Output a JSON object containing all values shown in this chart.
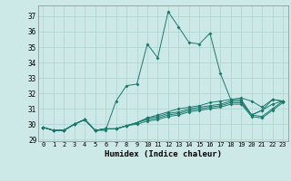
{
  "background_color": "#cce9e7",
  "grid_color": "#aad4d1",
  "line_color": "#1a7a6e",
  "xlabel": "Humidex (Indice chaleur)",
  "ylim": [
    28.9,
    37.7
  ],
  "xlim": [
    -0.5,
    23.5
  ],
  "yticks": [
    29,
    30,
    31,
    32,
    33,
    34,
    35,
    36,
    37
  ],
  "xticks": [
    0,
    1,
    2,
    3,
    4,
    5,
    6,
    7,
    8,
    9,
    10,
    11,
    12,
    13,
    14,
    15,
    16,
    17,
    18,
    19,
    20,
    21,
    22,
    23
  ],
  "series": [
    [
      29.8,
      29.6,
      29.6,
      30.0,
      30.3,
      29.6,
      29.6,
      31.5,
      32.5,
      32.6,
      35.2,
      34.3,
      37.3,
      36.3,
      35.3,
      35.2,
      35.9,
      33.3,
      31.6,
      31.6,
      30.6,
      30.9,
      31.6,
      31.5
    ],
    [
      29.8,
      29.6,
      29.6,
      30.0,
      30.3,
      29.6,
      29.7,
      29.7,
      29.9,
      30.1,
      30.4,
      30.6,
      30.8,
      31.0,
      31.1,
      31.2,
      31.4,
      31.5,
      31.6,
      31.7,
      31.5,
      31.1,
      31.6,
      31.5
    ],
    [
      29.8,
      29.6,
      29.6,
      30.0,
      30.3,
      29.6,
      29.7,
      29.7,
      29.9,
      30.1,
      30.4,
      30.5,
      30.7,
      30.8,
      31.0,
      31.1,
      31.2,
      31.3,
      31.5,
      31.5,
      30.6,
      30.9,
      31.3,
      31.5
    ],
    [
      29.8,
      29.6,
      29.6,
      30.0,
      30.3,
      29.6,
      29.7,
      29.7,
      29.9,
      30.1,
      30.3,
      30.4,
      30.6,
      30.7,
      30.9,
      31.0,
      31.1,
      31.2,
      31.4,
      31.4,
      30.6,
      30.5,
      31.0,
      31.5
    ],
    [
      29.8,
      29.6,
      29.6,
      30.0,
      30.3,
      29.6,
      29.7,
      29.7,
      29.9,
      30.0,
      30.2,
      30.3,
      30.5,
      30.6,
      30.8,
      30.9,
      31.0,
      31.1,
      31.3,
      31.3,
      30.5,
      30.4,
      30.9,
      31.4
    ]
  ]
}
